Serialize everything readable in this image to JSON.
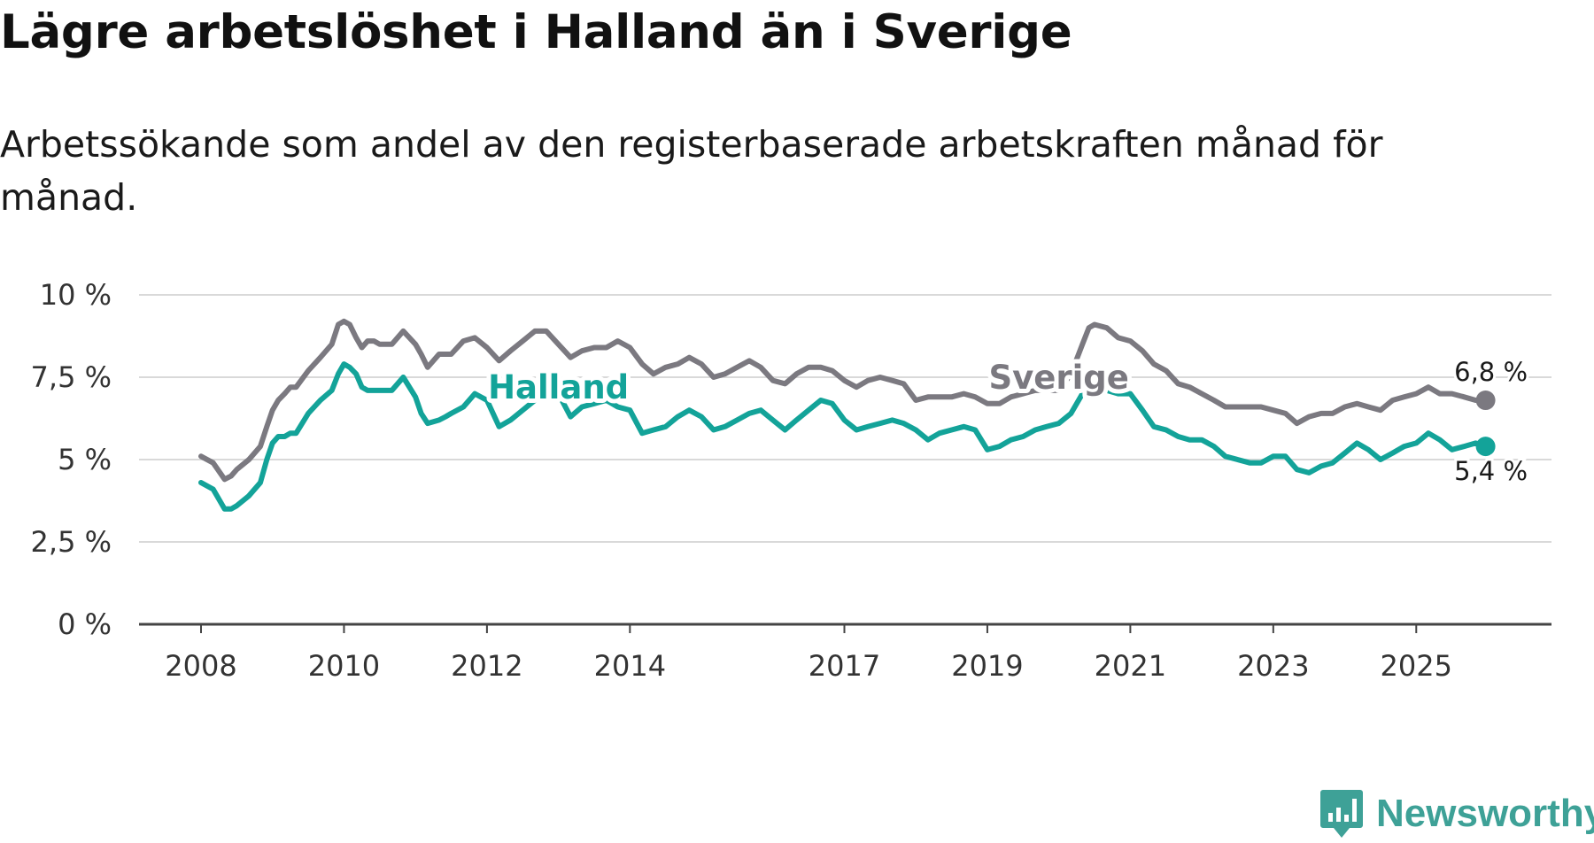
{
  "title": "Lägre arbetslöshet i Halland än i Sverige",
  "subtitle": "Arbetssökande som andel av den registerbaserade arbetskraften månad för månad.",
  "brand": {
    "name": "Newsworthy",
    "icon": "newsworthy-logo-icon"
  },
  "colors": {
    "sverige": "#7b7980",
    "halland": "#13a399",
    "grid": "#d9d9d9",
    "axis": "#444444",
    "brand": "#3ea197"
  },
  "chart_data": {
    "type": "line",
    "title": "Lägre arbetslöshet i Halland än i Sverige",
    "xlabel": "",
    "ylabel": "",
    "xlim": [
      2008,
      2026
    ],
    "ylim": [
      0,
      10
    ],
    "x_ticks": [
      {
        "value": 2008,
        "label": "2008"
      },
      {
        "value": 2010,
        "label": "2010"
      },
      {
        "value": 2012,
        "label": "2012"
      },
      {
        "value": 2014,
        "label": "2014"
      },
      {
        "value": 2017,
        "label": "2017"
      },
      {
        "value": 2019,
        "label": "2019"
      },
      {
        "value": 2021,
        "label": "2021"
      },
      {
        "value": 2023,
        "label": "2023"
      },
      {
        "value": 2025,
        "label": "2025"
      }
    ],
    "y_ticks": [
      {
        "value": 0,
        "label": "0 %"
      },
      {
        "value": 2.5,
        "label": "2,5 %"
      },
      {
        "value": 5,
        "label": "5 %"
      },
      {
        "value": 7.5,
        "label": "7,5 %"
      },
      {
        "value": 10,
        "label": "10 %"
      }
    ],
    "grid": true,
    "series": [
      {
        "name": "Sverige",
        "label": "Sverige",
        "end_label": "6,8 %",
        "x": [
          2008.0,
          2008.17,
          2008.33,
          2008.42,
          2008.5,
          2008.67,
          2008.83,
          2008.92,
          2009.0,
          2009.08,
          2009.17,
          2009.25,
          2009.33,
          2009.5,
          2009.67,
          2009.83,
          2009.92,
          2010.0,
          2010.08,
          2010.17,
          2010.25,
          2010.33,
          2010.42,
          2010.5,
          2010.67,
          2010.83,
          2011.0,
          2011.08,
          2011.17,
          2011.33,
          2011.42,
          2011.5,
          2011.67,
          2011.83,
          2012.0,
          2012.17,
          2012.33,
          2012.5,
          2012.67,
          2012.83,
          2013.0,
          2013.17,
          2013.33,
          2013.5,
          2013.67,
          2013.83,
          2014.0,
          2014.17,
          2014.33,
          2014.5,
          2014.67,
          2014.83,
          2015.0,
          2015.17,
          2015.33,
          2015.5,
          2015.67,
          2015.83,
          2016.0,
          2016.17,
          2016.33,
          2016.5,
          2016.67,
          2016.83,
          2017.0,
          2017.17,
          2017.33,
          2017.5,
          2017.67,
          2017.83,
          2018.0,
          2018.17,
          2018.33,
          2018.5,
          2018.67,
          2018.83,
          2019.0,
          2019.17,
          2019.33,
          2019.5,
          2019.67,
          2019.83,
          2020.0,
          2020.17,
          2020.33,
          2020.42,
          2020.5,
          2020.67,
          2020.83,
          2021.0,
          2021.17,
          2021.33,
          2021.5,
          2021.67,
          2021.83,
          2022.0,
          2022.17,
          2022.33,
          2022.5,
          2022.67,
          2022.83,
          2023.0,
          2023.17,
          2023.33,
          2023.5,
          2023.67,
          2023.83,
          2024.0,
          2024.17,
          2024.33,
          2024.5,
          2024.67,
          2024.83,
          2025.0,
          2025.17,
          2025.33,
          2025.5,
          2025.67,
          2025.83,
          2025.97
        ],
        "values": [
          5.1,
          4.9,
          4.4,
          4.5,
          4.7,
          5.0,
          5.4,
          6.0,
          6.5,
          6.8,
          7.0,
          7.2,
          7.2,
          7.7,
          8.1,
          8.5,
          9.1,
          9.2,
          9.1,
          8.7,
          8.4,
          8.6,
          8.6,
          8.5,
          8.5,
          8.9,
          8.5,
          8.2,
          7.8,
          8.2,
          8.2,
          8.2,
          8.6,
          8.7,
          8.4,
          8.0,
          8.3,
          8.6,
          8.9,
          8.9,
          8.5,
          8.1,
          8.3,
          8.4,
          8.4,
          8.6,
          8.4,
          7.9,
          7.6,
          7.8,
          7.9,
          8.1,
          7.9,
          7.5,
          7.6,
          7.8,
          8.0,
          7.8,
          7.4,
          7.3,
          7.6,
          7.8,
          7.8,
          7.7,
          7.4,
          7.2,
          7.4,
          7.5,
          7.4,
          7.3,
          6.8,
          6.9,
          6.9,
          6.9,
          7.0,
          6.9,
          6.7,
          6.7,
          6.9,
          7.0,
          7.1,
          7.1,
          7.1,
          7.6,
          8.5,
          9.0,
          9.1,
          9.0,
          8.7,
          8.6,
          8.3,
          7.9,
          7.7,
          7.3,
          7.2,
          7.0,
          6.8,
          6.6,
          6.6,
          6.6,
          6.6,
          6.5,
          6.4,
          6.1,
          6.3,
          6.4,
          6.4,
          6.6,
          6.7,
          6.6,
          6.5,
          6.8,
          6.9,
          7.0,
          7.2,
          7.0,
          7.0,
          6.9,
          6.8,
          6.8
        ]
      },
      {
        "name": "Halland",
        "label": "Halland",
        "end_label": "5,4 %",
        "x": [
          2008.0,
          2008.17,
          2008.33,
          2008.42,
          2008.5,
          2008.67,
          2008.83,
          2008.92,
          2009.0,
          2009.08,
          2009.17,
          2009.25,
          2009.33,
          2009.5,
          2009.67,
          2009.83,
          2009.92,
          2010.0,
          2010.08,
          2010.17,
          2010.25,
          2010.33,
          2010.42,
          2010.5,
          2010.67,
          2010.83,
          2011.0,
          2011.08,
          2011.17,
          2011.33,
          2011.42,
          2011.5,
          2011.67,
          2011.83,
          2012.0,
          2012.17,
          2012.33,
          2012.5,
          2012.67,
          2012.83,
          2013.0,
          2013.17,
          2013.33,
          2013.5,
          2013.67,
          2013.83,
          2014.0,
          2014.17,
          2014.33,
          2014.5,
          2014.67,
          2014.83,
          2015.0,
          2015.17,
          2015.33,
          2015.5,
          2015.67,
          2015.83,
          2016.0,
          2016.17,
          2016.33,
          2016.5,
          2016.67,
          2016.83,
          2017.0,
          2017.17,
          2017.33,
          2017.5,
          2017.67,
          2017.83,
          2018.0,
          2018.17,
          2018.33,
          2018.5,
          2018.67,
          2018.83,
          2019.0,
          2019.17,
          2019.33,
          2019.5,
          2019.67,
          2019.83,
          2020.0,
          2020.17,
          2020.33,
          2020.42,
          2020.5,
          2020.67,
          2020.83,
          2021.0,
          2021.17,
          2021.33,
          2021.5,
          2021.67,
          2021.83,
          2022.0,
          2022.17,
          2022.33,
          2022.5,
          2022.67,
          2022.83,
          2023.0,
          2023.17,
          2023.33,
          2023.5,
          2023.67,
          2023.83,
          2024.0,
          2024.17,
          2024.33,
          2024.5,
          2024.67,
          2024.83,
          2025.0,
          2025.17,
          2025.33,
          2025.5,
          2025.67,
          2025.83,
          2025.97
        ],
        "values": [
          4.3,
          4.1,
          3.5,
          3.5,
          3.6,
          3.9,
          4.3,
          5.0,
          5.5,
          5.7,
          5.7,
          5.8,
          5.8,
          6.4,
          6.8,
          7.1,
          7.6,
          7.9,
          7.8,
          7.6,
          7.2,
          7.1,
          7.1,
          7.1,
          7.1,
          7.5,
          6.9,
          6.4,
          6.1,
          6.2,
          6.3,
          6.4,
          6.6,
          7.0,
          6.8,
          6.0,
          6.2,
          6.5,
          6.8,
          7.1,
          7.0,
          6.3,
          6.6,
          6.7,
          6.8,
          6.6,
          6.5,
          5.8,
          5.9,
          6.0,
          6.3,
          6.5,
          6.3,
          5.9,
          6.0,
          6.2,
          6.4,
          6.5,
          6.2,
          5.9,
          6.2,
          6.5,
          6.8,
          6.7,
          6.2,
          5.9,
          6.0,
          6.1,
          6.2,
          6.1,
          5.9,
          5.6,
          5.8,
          5.9,
          6.0,
          5.9,
          5.3,
          5.4,
          5.6,
          5.7,
          5.9,
          6.0,
          6.1,
          6.4,
          7.0,
          7.3,
          7.2,
          7.1,
          7.0,
          7.0,
          6.5,
          6.0,
          5.9,
          5.7,
          5.6,
          5.6,
          5.4,
          5.1,
          5.0,
          4.9,
          4.9,
          5.1,
          5.1,
          4.7,
          4.6,
          4.8,
          4.9,
          5.2,
          5.5,
          5.3,
          5.0,
          5.2,
          5.4,
          5.5,
          5.8,
          5.6,
          5.3,
          5.4,
          5.5,
          5.4
        ]
      }
    ]
  }
}
